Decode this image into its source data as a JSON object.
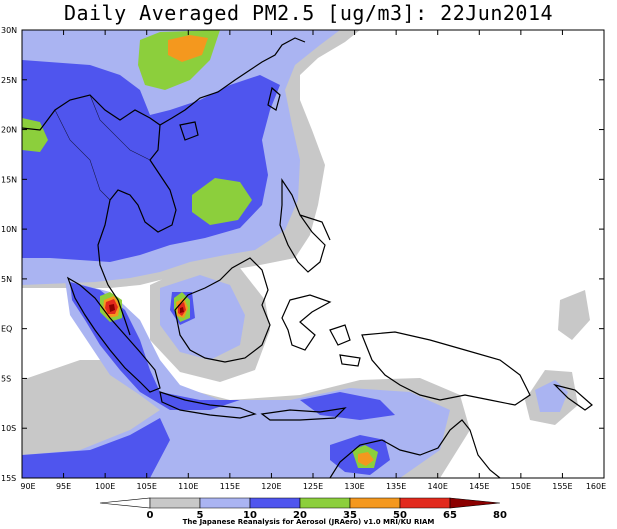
{
  "map": {
    "title": "Daily Averaged PM2.5 [ug/m3]: 22Jun2014",
    "lon_labels": [
      "90E",
      "95E",
      "100E",
      "105E",
      "110E",
      "115E",
      "120E",
      "125E",
      "130E",
      "135E",
      "140E",
      "145E",
      "150E",
      "155E",
      "160E"
    ],
    "lat_labels": [
      "30N",
      "25N",
      "20N",
      "15N",
      "10N",
      "5N",
      "EQ",
      "5S",
      "10S",
      "15S"
    ],
    "extent": {
      "lon_min": 90,
      "lon_max": 160,
      "lat_min": -15,
      "lat_max": 30
    },
    "colorbar": {
      "ticks": [
        "0",
        "5",
        "10",
        "20",
        "35",
        "50",
        "65",
        "80"
      ],
      "colors": [
        "#ffffff",
        "#c8c8c8",
        "#aab4f2",
        "#4f55ee",
        "#8ccf3c",
        "#f4981e",
        "#e22a1d",
        "#8b0000"
      ]
    },
    "credit": "The Japanese Reanalysis for Aerosol (JRAero) v1.0 MRI/KU RIAM"
  }
}
